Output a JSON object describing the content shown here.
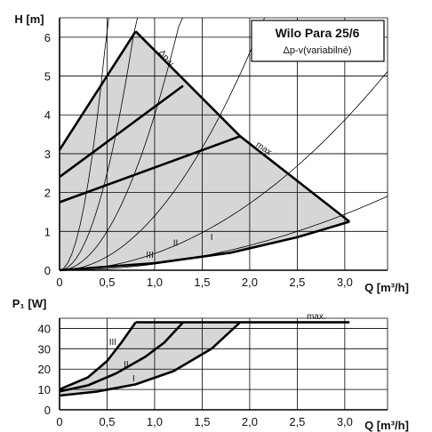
{
  "chart_data": [
    {
      "type": "line",
      "title": "Wilo Para 25/6",
      "subtitle": "Δp-v(variabilné)",
      "xlabel": "Q [m³/h]",
      "ylabel": "H [m]",
      "xlim": [
        0,
        3.45
      ],
      "ylim": [
        0,
        6.5
      ],
      "xticks": [
        "0",
        "0,5",
        "1,0",
        "1,5",
        "2,0",
        "2,5",
        "3,0"
      ],
      "xtick_values": [
        0,
        0.5,
        1.0,
        1.5,
        2.0,
        2.5,
        3.0
      ],
      "yticks": [
        "0",
        "1",
        "2",
        "3",
        "4",
        "5",
        "6"
      ],
      "ytick_values": [
        0,
        1,
        2,
        3,
        4,
        5,
        6
      ],
      "grid": true,
      "legend": "top-right",
      "shaded_region_color": "#d6d6d6",
      "curve_labels": {
        "I": "I",
        "II": "II",
        "III": "III",
        "dpv": "Δp-v",
        "max": "max"
      },
      "series": [
        {
          "name": "I",
          "points": [
            [
              0,
              1.75
            ],
            [
              1.9,
              3.45
            ]
          ]
        },
        {
          "name": "II",
          "points": [
            [
              0,
              2.4
            ],
            [
              1.3,
              4.75
            ]
          ]
        },
        {
          "name": "III",
          "points": [
            [
              0,
              3.1
            ],
            [
              0.8,
              6.15
            ]
          ]
        },
        {
          "name": "max",
          "points": [
            [
              0.8,
              6.15
            ],
            [
              1.9,
              3.45
            ],
            [
              3.05,
              1.25
            ]
          ]
        },
        {
          "name": "min",
          "points": [
            [
              0,
              0
            ],
            [
              1.0,
              0.18
            ],
            [
              1.8,
              0.45
            ],
            [
              2.5,
              0.85
            ],
            [
              3.05,
              1.25
            ]
          ]
        }
      ],
      "system_curves": [
        {
          "k": 25
        },
        {
          "k": 10
        },
        {
          "k": 4
        },
        {
          "k": 1.4
        },
        {
          "k": 0.43
        },
        {
          "k": 0.16
        }
      ]
    },
    {
      "type": "line",
      "xlabel": "Q [m³/h]",
      "ylabel": "P₁ [W]",
      "xlim": [
        0,
        3.45
      ],
      "ylim": [
        0,
        45
      ],
      "xticks": [
        "0",
        "0,5",
        "1,0",
        "1,5",
        "2,0",
        "2,5",
        "3,0"
      ],
      "xtick_values": [
        0,
        0.5,
        1.0,
        1.5,
        2.0,
        2.5,
        3.0
      ],
      "yticks": [
        "0",
        "10",
        "20",
        "30",
        "40"
      ],
      "ytick_values": [
        0,
        10,
        20,
        30,
        40
      ],
      "grid": true,
      "shaded_region_color": "#d6d6d6",
      "curve_labels": {
        "I": "I",
        "II": "II",
        "III": "III",
        "max": "max."
      },
      "series": [
        {
          "name": "I",
          "points": [
            [
              0,
              7
            ],
            [
              0.4,
              9
            ],
            [
              0.8,
              12.5
            ],
            [
              1.2,
              19
            ],
            [
              1.6,
              30
            ],
            [
              1.9,
              43
            ]
          ]
        },
        {
          "name": "II",
          "points": [
            [
              0,
              9
            ],
            [
              0.3,
              12
            ],
            [
              0.6,
              18
            ],
            [
              0.9,
              26
            ],
            [
              1.1,
              33
            ],
            [
              1.3,
              43
            ]
          ]
        },
        {
          "name": "III",
          "points": [
            [
              0,
              10
            ],
            [
              0.3,
              16
            ],
            [
              0.5,
              24
            ],
            [
              0.65,
              33
            ],
            [
              0.8,
              43
            ]
          ]
        },
        {
          "name": "max.",
          "points": [
            [
              0.8,
              43
            ],
            [
              3.05,
              43
            ]
          ]
        }
      ]
    }
  ]
}
